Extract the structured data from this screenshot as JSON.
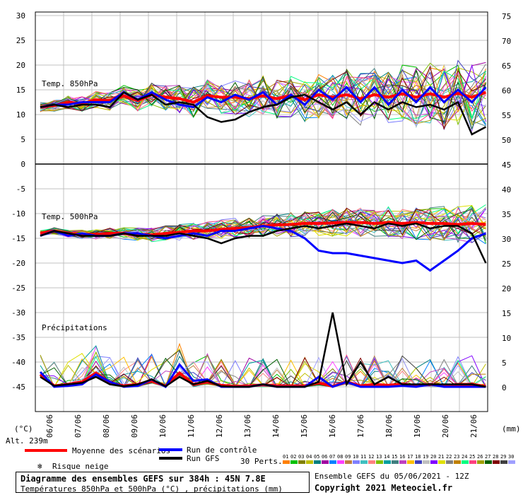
{
  "chart_data": {
    "type": "line",
    "title": "Diagramme des ensembles GEFS sur 384h : 45N 7.8E",
    "subtitle": "Températures 850hPa et 500hPa (°C) , précipitations (mm)",
    "left_unit": "(°C)",
    "right_unit": "(mm)",
    "altitude": "Alt. 239m",
    "x_tick_labels": [
      "06/06",
      "07/06",
      "08/06",
      "09/06",
      "10/06",
      "11/06",
      "12/06",
      "13/06",
      "14/06",
      "15/06",
      "16/06",
      "17/06",
      "18/06",
      "19/06",
      "20/06",
      "21/06"
    ],
    "left_axis_ticks": [
      "30",
      "25",
      "20",
      "15",
      "10",
      "5",
      "0",
      "-5",
      "-10",
      "-15",
      "-20",
      "-25",
      "-30",
      "-35",
      "-40",
      "-45"
    ],
    "right_axis_ticks": [
      "75",
      "70",
      "65",
      "60",
      "55",
      "50",
      "45",
      "40",
      "35",
      "30",
      "25",
      "20",
      "15",
      "10",
      "5",
      "0"
    ],
    "panels": [
      {
        "name": "Temp. 850hPa",
        "ylim": [
          0,
          30
        ]
      },
      {
        "name": "Temp. 500hPa",
        "ylim": [
          -30,
          0
        ]
      },
      {
        "name": "Précipitations",
        "ylim": [
          0,
          15
        ]
      }
    ],
    "x_days": [
      0,
      0.5,
      1,
      1.5,
      2,
      2.5,
      3,
      3.5,
      4,
      4.5,
      5,
      5.5,
      6,
      6.5,
      7,
      7.5,
      8,
      8.5,
      9,
      9.5,
      10,
      10.5,
      11,
      11.5,
      12,
      12.5,
      13,
      13.5,
      14,
      14.5,
      15,
      15.5,
      16
    ],
    "series": [
      {
        "name": "Moyenne des scénarios",
        "color": "#ff0000",
        "t850": [
          11.5,
          11.8,
          12.5,
          12.2,
          13.0,
          12.8,
          13.8,
          12.8,
          14.0,
          13.5,
          13.2,
          12.5,
          13.8,
          13.5,
          13.5,
          13.2,
          13.8,
          13.2,
          13.8,
          13.0,
          14.0,
          13.5,
          14.0,
          13.2,
          14.0,
          13.5,
          14.2,
          13.5,
          14.2,
          13.5,
          14.3,
          13.5,
          14.5
        ],
        "t500": [
          -14.0,
          -13.5,
          -14.0,
          -14.2,
          -14.2,
          -14.0,
          -14.0,
          -14.2,
          -14.3,
          -14.0,
          -13.8,
          -13.5,
          -13.5,
          -13.2,
          -13.0,
          -12.8,
          -12.5,
          -12.3,
          -12.2,
          -12.0,
          -12.0,
          -11.9,
          -11.8,
          -11.8,
          -12.0,
          -11.8,
          -12.0,
          -11.8,
          -12.0,
          -12.0,
          -12.2,
          -12.0,
          -12.2
        ],
        "precip": [
          2.5,
          0.2,
          0.5,
          1.0,
          2.8,
          0.8,
          0.2,
          0.5,
          1.2,
          0.2,
          2.8,
          0.5,
          1.0,
          0.3,
          0.1,
          0.2,
          0.4,
          0.2,
          0.2,
          0.2,
          0.8,
          0.1,
          1.0,
          0.2,
          0.5,
          0.3,
          0.6,
          0.2,
          0.5,
          0.2,
          0.5,
          0.5,
          0.1
        ]
      },
      {
        "name": "Run de contrôle",
        "color": "#0000ff",
        "t850": [
          11.5,
          12.0,
          12.0,
          12.5,
          12.5,
          12.5,
          14.5,
          13.0,
          14.5,
          13.0,
          12.0,
          11.5,
          13.5,
          12.5,
          14.0,
          13.0,
          14.5,
          12.0,
          14.0,
          12.0,
          15.0,
          13.0,
          15.5,
          12.5,
          15.5,
          12.0,
          15.0,
          12.5,
          15.5,
          12.5,
          15.0,
          12.5,
          15.5
        ],
        "t500": [
          -14.5,
          -13.5,
          -14.5,
          -14.0,
          -14.5,
          -14.5,
          -14.0,
          -14.0,
          -14.5,
          -15.0,
          -14.5,
          -14.0,
          -14.5,
          -13.5,
          -13.5,
          -13.0,
          -12.5,
          -13.0,
          -13.5,
          -15.0,
          -17.5,
          -18.0,
          -18.0,
          -18.5,
          -19.0,
          -19.5,
          -20.0,
          -19.5,
          -21.5,
          -19.5,
          -17.5,
          -15.0,
          -14.0
        ],
        "precip": [
          3.0,
          0.0,
          0.2,
          0.5,
          2.5,
          1.0,
          0.0,
          0.2,
          1.5,
          0.0,
          4.5,
          1.2,
          1.5,
          0.0,
          0.0,
          0.0,
          0.5,
          0.0,
          0.0,
          0.0,
          2.0,
          0.0,
          1.0,
          0.0,
          0.0,
          0.0,
          0.2,
          0.0,
          0.5,
          0.0,
          0.0,
          0.0,
          0.0
        ]
      },
      {
        "name": "Run GFS",
        "color": "#000000",
        "t850": [
          11.5,
          12.0,
          11.5,
          12.0,
          12.0,
          11.5,
          14.5,
          13.0,
          14.0,
          12.0,
          12.5,
          12.0,
          9.5,
          8.5,
          9.0,
          10.5,
          11.5,
          12.0,
          13.5,
          14.0,
          12.5,
          11.0,
          12.5,
          10.0,
          12.5,
          11.0,
          12.5,
          11.5,
          12.0,
          11.0,
          12.5,
          6.0,
          7.5
        ],
        "t500": [
          -14.5,
          -13.5,
          -14.0,
          -14.5,
          -14.5,
          -14.5,
          -14.0,
          -14.5,
          -14.5,
          -14.5,
          -14.0,
          -14.5,
          -15.0,
          -16.0,
          -15.0,
          -14.5,
          -14.5,
          -13.5,
          -13.0,
          -12.5,
          -13.0,
          -12.5,
          -12.0,
          -12.5,
          -13.0,
          -12.0,
          -12.5,
          -12.0,
          -13.0,
          -12.5,
          -12.5,
          -14.0,
          -20.0
        ],
        "precip": [
          2.0,
          0.2,
          0.5,
          0.8,
          2.0,
          0.5,
          0.1,
          0.5,
          1.5,
          0.1,
          2.0,
          0.5,
          1.2,
          0.1,
          0.0,
          0.0,
          0.5,
          0.0,
          0.0,
          0.0,
          1.0,
          15.0,
          0.5,
          5.0,
          0.5,
          2.0,
          0.5,
          0.5,
          0.5,
          0.5,
          0.5,
          0.5,
          0.0
        ]
      }
    ],
    "perturbation_count": 30,
    "grid": true,
    "legend_placement": "bottom"
  },
  "legend": {
    "mean": "Moyenne des scénarios",
    "control": "Run de contrôle",
    "gfs": "Run GFS",
    "snow": "Risque neige",
    "perts": "30 Perts.",
    "pert_numbers": [
      "01",
      "02",
      "03",
      "04",
      "05",
      "06",
      "07",
      "08",
      "09",
      "10",
      "11",
      "12",
      "13",
      "14",
      "15",
      "16",
      "17",
      "18",
      "19",
      "20",
      "21",
      "22",
      "23",
      "24",
      "25",
      "26",
      "27",
      "28",
      "29",
      "30"
    ],
    "pert_colors": [
      "#ff8000",
      "#00c000",
      "#808000",
      "#c0c000",
      "#008080",
      "#a000a0",
      "#0080ff",
      "#ff40ff",
      "#c08040",
      "#8080ff",
      "#40c0c0",
      "#ff8080",
      "#80c000",
      "#00a0a0",
      "#408080",
      "#c040c0",
      "#ffc000",
      "#4040c0",
      "#c0c0c0",
      "#8000ff",
      "#e0e000",
      "#808080",
      "#c08000",
      "#00ff80",
      "#ff4080",
      "#a0a000",
      "#006000",
      "#800000",
      "#404040",
      "#a0a0ff"
    ]
  },
  "footer": {
    "title": "Diagramme des ensembles GEFS sur 384h : 45N 7.8E",
    "subtitle": "Températures 850hPa et 500hPa (°C) , précipitations (mm)",
    "run_info": "Ensemble GEFS du 05/06/2021 - 12Z",
    "copyright": "Copyright 2021 Meteociel.fr"
  }
}
